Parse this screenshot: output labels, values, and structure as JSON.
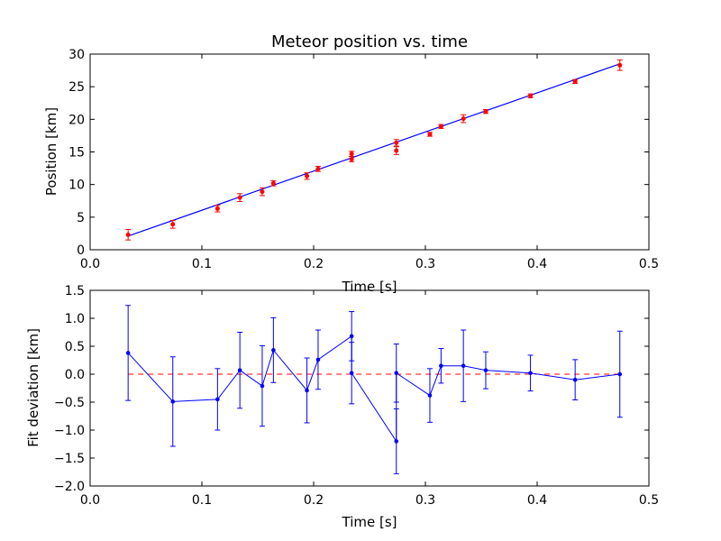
{
  "chart_data": [
    {
      "type": "scatter",
      "title": "Meteor position vs. time",
      "xlabel": "Time [s]",
      "ylabel": "Position [km]",
      "xlim": [
        0.0,
        0.5
      ],
      "ylim": [
        0,
        30
      ],
      "xticks": [
        "0.0",
        "0.1",
        "0.2",
        "0.3",
        "0.4",
        "0.5"
      ],
      "yticks": [
        "0",
        "5",
        "10",
        "15",
        "20",
        "25",
        "30"
      ],
      "grid": false,
      "colors": {
        "points": "#ff0000",
        "fit": "#0000ff"
      },
      "points": {
        "x": [
          0.034,
          0.074,
          0.114,
          0.134,
          0.154,
          0.164,
          0.194,
          0.204,
          0.234,
          0.234,
          0.274,
          0.274,
          0.304,
          0.314,
          0.334,
          0.354,
          0.394,
          0.434,
          0.474
        ],
        "y": [
          2.3,
          3.9,
          6.3,
          8.0,
          8.9,
          10.2,
          11.3,
          12.4,
          14.7,
          13.9,
          15.2,
          16.4,
          17.7,
          18.9,
          20.1,
          21.2,
          23.6,
          25.8,
          28.3
        ],
        "err": [
          0.8,
          0.6,
          0.5,
          0.6,
          0.6,
          0.4,
          0.5,
          0.4,
          0.4,
          0.4,
          0.6,
          0.5,
          0.3,
          0.3,
          0.6,
          0.3,
          0.3,
          0.3,
          0.8
        ]
      },
      "fit_line": {
        "x": [
          0.034,
          0.474
        ],
        "y": [
          2.1,
          28.5
        ]
      }
    },
    {
      "type": "line",
      "xlabel": "Time [s]",
      "ylabel": "Fit deviation [km]",
      "xlim": [
        0.0,
        0.5
      ],
      "ylim": [
        -2.0,
        1.5
      ],
      "xticks": [
        "0.0",
        "0.1",
        "0.2",
        "0.3",
        "0.4",
        "0.5"
      ],
      "yticks": [
        "−2.0",
        "−1.5",
        "−1.0",
        "−0.5",
        "0.0",
        "0.5",
        "1.0",
        "1.5"
      ],
      "grid": false,
      "colors": {
        "series": "#0000ff",
        "zero_line": "#ff0000"
      },
      "series": {
        "x": [
          0.034,
          0.074,
          0.114,
          0.134,
          0.154,
          0.164,
          0.194,
          0.204,
          0.234,
          0.234,
          0.274,
          0.274,
          0.304,
          0.314,
          0.334,
          0.354,
          0.394,
          0.434,
          0.474
        ],
        "y": [
          0.38,
          -0.49,
          -0.45,
          0.07,
          -0.21,
          0.43,
          -0.29,
          0.26,
          0.68,
          0.02,
          -1.2,
          0.02,
          -0.38,
          0.15,
          0.15,
          0.07,
          0.02,
          -0.1,
          0.0
        ],
        "err": [
          0.85,
          0.8,
          0.55,
          0.68,
          0.72,
          0.58,
          0.58,
          0.53,
          0.44,
          0.55,
          0.58,
          0.52,
          0.48,
          0.31,
          0.64,
          0.33,
          0.32,
          0.36,
          0.77
        ]
      },
      "zero_line": 0.0
    }
  ]
}
